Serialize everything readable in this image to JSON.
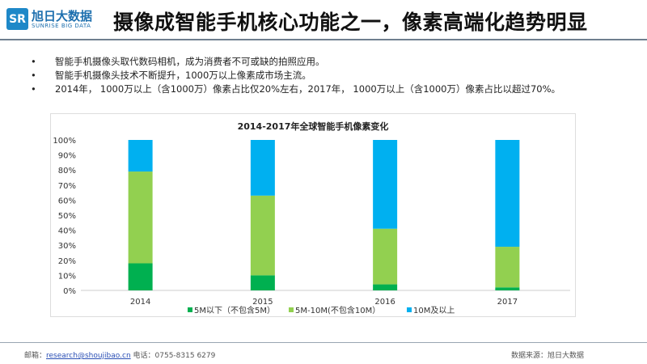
{
  "header": {
    "logo_mark": "SR",
    "logo_cn": "旭日大数据",
    "logo_en": "SUNRISE BIG DATA",
    "title": "摄像成智能手机核心功能之一，像素高端化趋势明显"
  },
  "bullets": [
    "智能手机摄像头取代数码相机，成为消费者不可或缺的拍照应用。",
    "智能手机摄像头技术不断提升，1000万以上像素成市场主流。",
    "2014年， 1000万以上（含1000万）像素占比仅20%左右，2017年， 1000万以上（含1000万）像素占比以超过70%。"
  ],
  "bullet_symbol": "•",
  "chart_data": {
    "type": "bar",
    "stacked": true,
    "title": "2014-2017年全球智能手机像素变化",
    "categories": [
      "2014",
      "2015",
      "2016",
      "2017"
    ],
    "series": [
      {
        "name": "5M以下（不包含5M）",
        "color": "#00b050",
        "values": [
          18,
          10,
          4,
          2
        ]
      },
      {
        "name": "5M-10M(不包含10M）",
        "color": "#92d050",
        "values": [
          61,
          53,
          37,
          27
        ]
      },
      {
        "name": "10M及以上",
        "color": "#00b0f0",
        "values": [
          21,
          37,
          59,
          71
        ]
      }
    ],
    "yticks": [
      "0%",
      "10%",
      "20%",
      "30%",
      "40%",
      "50%",
      "60%",
      "70%",
      "80%",
      "90%",
      "100%"
    ],
    "ylim": [
      0,
      100
    ],
    "grid": false,
    "legend": "bottom"
  },
  "footer": {
    "email_label": "邮箱：",
    "email": "research@shoujibao.cn",
    "phone": "电话：0755-8315 6279",
    "source": "数据来源：旭日大数据"
  }
}
